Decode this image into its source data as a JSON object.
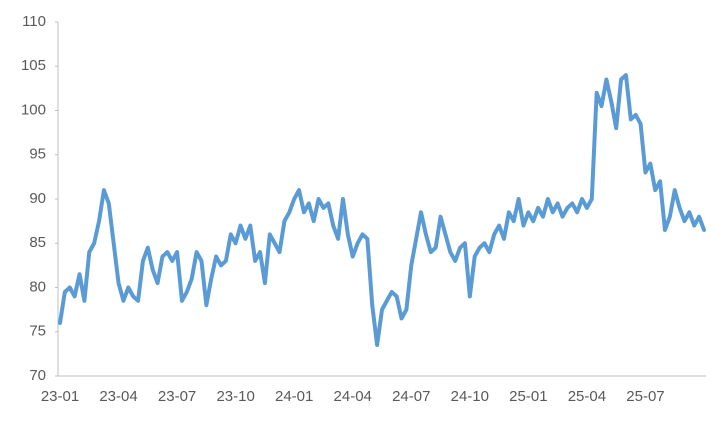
{
  "chart_data": {
    "type": "line",
    "categories": [
      "23-01",
      null,
      null,
      null,
      null,
      null,
      null,
      null,
      null,
      null,
      null,
      null,
      "23-04",
      null,
      null,
      null,
      null,
      null,
      null,
      null,
      null,
      null,
      null,
      null,
      "23-07",
      null,
      null,
      null,
      null,
      null,
      null,
      null,
      null,
      null,
      null,
      null,
      "23-10",
      null,
      null,
      null,
      null,
      null,
      null,
      null,
      null,
      null,
      null,
      null,
      "24-01",
      null,
      null,
      null,
      null,
      null,
      null,
      null,
      null,
      null,
      null,
      null,
      "24-04",
      null,
      null,
      null,
      null,
      null,
      null,
      null,
      null,
      null,
      null,
      null,
      "24-07",
      null,
      null,
      null,
      null,
      null,
      null,
      null,
      null,
      null,
      null,
      null,
      "24-10",
      null,
      null,
      null,
      null,
      null,
      null,
      null,
      null,
      null,
      null,
      null,
      "25-01",
      null,
      null,
      null,
      null,
      null,
      null,
      null,
      null,
      null,
      null,
      null,
      "25-04",
      null,
      null,
      null,
      null,
      null,
      null,
      null,
      null,
      null,
      null,
      null,
      "25-07",
      null,
      null,
      null,
      null,
      null,
      null,
      null,
      null,
      null,
      null,
      null,
      null
    ],
    "values": [
      76,
      79.5,
      80,
      79,
      81.5,
      78.5,
      84,
      85,
      87.5,
      91,
      89.5,
      85,
      80.5,
      78.5,
      80,
      79,
      78.5,
      83,
      84.5,
      82,
      80.5,
      83.5,
      84,
      83,
      84,
      78.5,
      79.5,
      81,
      84,
      83,
      78,
      81,
      83.5,
      82.5,
      83,
      86,
      85,
      87,
      85.5,
      87,
      83,
      84,
      80.5,
      86,
      85,
      84,
      87.5,
      88.5,
      90,
      91,
      88.5,
      89.5,
      87.5,
      90,
      89,
      89.5,
      87,
      85.5,
      90,
      86,
      83.5,
      85,
      86,
      85.5,
      78,
      73.5,
      77.5,
      78.5,
      79.5,
      79,
      76.5,
      77.5,
      82.5,
      85.5,
      88.5,
      86,
      84,
      84.5,
      88,
      86,
      84,
      83,
      84.5,
      85,
      79,
      83.5,
      84.5,
      85,
      84,
      86,
      87,
      85.5,
      88.5,
      87.5,
      90,
      87,
      88.5,
      87.5,
      89,
      88,
      90,
      88.5,
      89.5,
      88,
      89,
      89.5,
      88.5,
      90,
      89,
      90,
      102,
      100.5,
      103.5,
      101,
      98,
      103.5,
      104,
      99,
      99.5,
      98.5,
      93,
      94,
      91,
      92,
      86.5,
      88,
      91,
      89,
      87.5,
      88.5,
      87,
      88,
      86.5
    ],
    "color": "#5b9bd5",
    "ylim": [
      70,
      110
    ],
    "yticks": [
      70,
      75,
      80,
      85,
      90,
      95,
      100,
      105,
      110
    ],
    "grid": false
  }
}
